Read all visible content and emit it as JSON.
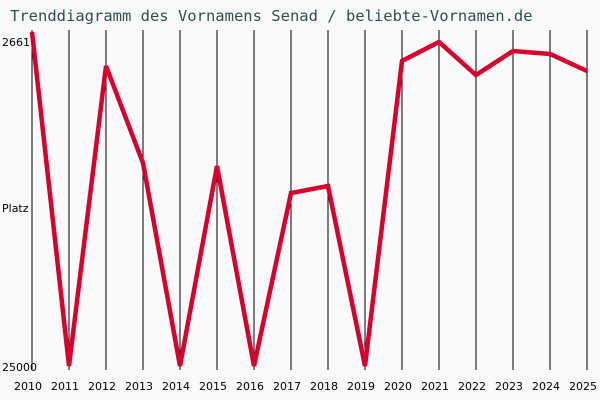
{
  "title": "Trenddiagramm des Vornamens Senad / beliebte-Vornamen.de",
  "y_axis": {
    "top_label": "2661",
    "mid_label": "Platz",
    "bottom_label": "25000"
  },
  "colors": {
    "line": "#d9002e",
    "grid": "#000000",
    "title": "#2f4f4f",
    "background": "#fafafa"
  },
  "chart_data": {
    "type": "line",
    "title": "Trenddiagramm des Vornamens Senad / beliebte-Vornamen.de",
    "xlabel": "",
    "ylabel": "Platz",
    "ylim": [
      25000,
      2661
    ],
    "y_inverted": true,
    "grid": {
      "vertical": true,
      "horizontal": false
    },
    "categories": [
      "2010",
      "2011",
      "2012",
      "2013",
      "2014",
      "2015",
      "2016",
      "2017",
      "2018",
      "2019",
      "2020",
      "2021",
      "2022",
      "2023",
      "2024",
      "2025"
    ],
    "series": [
      {
        "name": "Senad",
        "values": [
          2661,
          25000,
          4935,
          11423,
          25000,
          11624,
          25000,
          13430,
          12962,
          25000,
          4601,
          3330,
          5537,
          3932,
          4133,
          5270
        ]
      }
    ]
  }
}
